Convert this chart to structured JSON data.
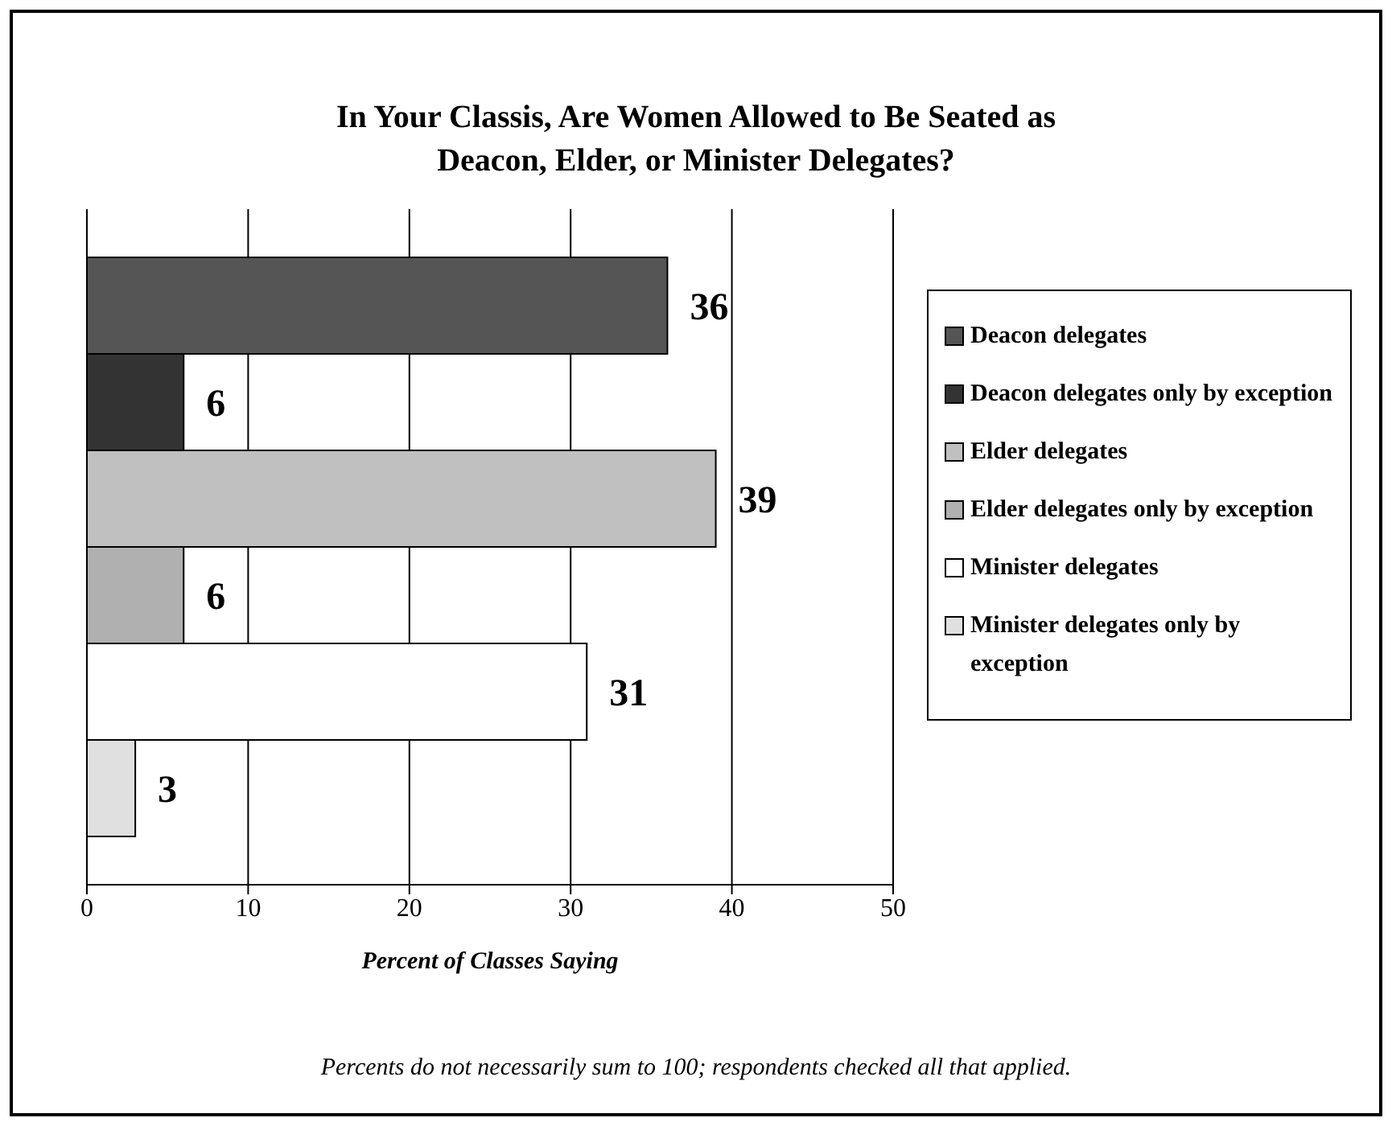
{
  "chart_data": {
    "type": "bar",
    "orientation": "horizontal",
    "title": "In Your Classis, Are Women Allowed to Be Seated as Deacon, Elder, or Minister Delegates?",
    "xlabel": "Percent of Classes Saying",
    "categories": [
      null
    ],
    "series": [
      {
        "name": "Deacon delegates",
        "color": "#555555",
        "values": [
          36
        ]
      },
      {
        "name": "Deacon delegates only by exception",
        "color": "#333333",
        "values": [
          6
        ]
      },
      {
        "name": "Elder delegates",
        "color": "#c0c0c0",
        "values": [
          39
        ]
      },
      {
        "name": "Elder delegates only by exception",
        "color": "#b0b0b0",
        "values": [
          6
        ]
      },
      {
        "name": "Minister delegates",
        "color": "#ffffff",
        "values": [
          31
        ]
      },
      {
        "name": "Minister delegates only by exception",
        "color": "#e0e0e0",
        "values": [
          3
        ]
      }
    ],
    "xlim": [
      0,
      50
    ],
    "xticks": [
      0,
      10,
      20,
      30,
      40,
      50
    ],
    "grid": "x",
    "legend": "right",
    "data_labels": true,
    "annotations": [
      "Percents do not necessarily sum to 100; respondents checked all that applied."
    ]
  }
}
